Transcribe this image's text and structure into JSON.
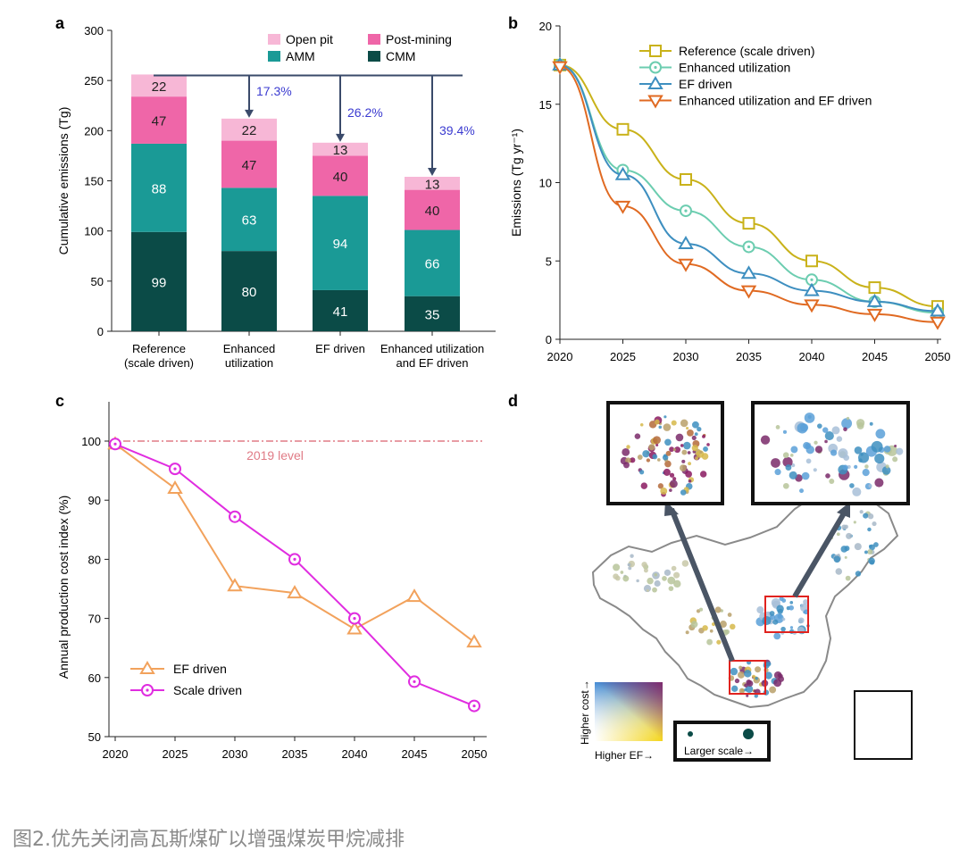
{
  "caption": "图2.优先关闭高瓦斯煤矿以增强煤炭甲烷减排",
  "panels": {
    "a": "a",
    "b": "b",
    "c": "c",
    "d": "d"
  },
  "colors": {
    "open_pit": "#f7b7d6",
    "post_mining": "#ef66a8",
    "amm": "#1a9a96",
    "cmm": "#0b4b47",
    "reference": "#c9b21a",
    "enhanced": "#6ccdb0",
    "ef": "#3e8fc0",
    "enh_ef": "#e06a22",
    "ef_c": "#f2a25c",
    "scale_c": "#e02de0",
    "level2019": "#e07b86",
    "arrow": "#3a4a6a",
    "pct": "#3b3bd0"
  },
  "chart_data": [
    {
      "panel": "a",
      "type": "bar",
      "stacked": true,
      "ylabel": "Cumulative emissions (Tg)",
      "ylim": [
        0,
        300
      ],
      "yticks": [
        0,
        50,
        100,
        150,
        200,
        250,
        300
      ],
      "categories": [
        "Reference\n(scale driven)",
        "Enhanced\nutilization",
        "EF driven",
        "Enhanced utilization\nand EF driven"
      ],
      "series": [
        {
          "name": "CMM",
          "values": [
            99,
            80,
            41,
            35
          ]
        },
        {
          "name": "AMM",
          "values": [
            88,
            63,
            94,
            66
          ]
        },
        {
          "name": "Post-mining",
          "values": [
            47,
            47,
            40,
            40
          ]
        },
        {
          "name": "Open pit",
          "values": [
            22,
            22,
            13,
            13
          ]
        }
      ],
      "legend": [
        "Open pit",
        "Post-mining",
        "AMM",
        "CMM"
      ],
      "reductions": [
        "17.3%",
        "26.2%",
        "39.4%"
      ]
    },
    {
      "panel": "b",
      "type": "line",
      "ylabel": "Emissions (Tg yr⁻¹)",
      "ylim": [
        0,
        20
      ],
      "yticks": [
        0,
        5,
        10,
        15,
        20
      ],
      "x": [
        2020,
        2025,
        2030,
        2035,
        2040,
        2045,
        2050
      ],
      "series": [
        {
          "name": "Reference (scale driven)",
          "values": [
            17.5,
            13.4,
            10.2,
            7.4,
            5.0,
            3.3,
            2.1
          ]
        },
        {
          "name": "Enhanced utilization",
          "values": [
            17.5,
            10.8,
            8.2,
            5.9,
            3.8,
            2.4,
            1.7
          ]
        },
        {
          "name": "EF driven",
          "values": [
            17.5,
            10.5,
            6.1,
            4.2,
            3.1,
            2.4,
            1.8
          ]
        },
        {
          "name": "Enhanced utilization and EF driven",
          "values": [
            17.4,
            8.5,
            4.8,
            3.1,
            2.2,
            1.6,
            1.1
          ]
        }
      ]
    },
    {
      "panel": "c",
      "type": "line",
      "ylabel": "Annual production cost index (%)",
      "ylim": [
        50,
        102.5
      ],
      "yticks": [
        50,
        60,
        70,
        80,
        90,
        100
      ],
      "x": [
        2020,
        2025,
        2030,
        2035,
        2040,
        2045,
        2050
      ],
      "reference_line": {
        "value": 100,
        "label": "2019 level"
      },
      "series": [
        {
          "name": "EF driven",
          "values": [
            99.5,
            92,
            75.5,
            74.3,
            68.2,
            73.7,
            66
          ]
        },
        {
          "name": "Scale driven",
          "values": [
            99.5,
            95.3,
            87.2,
            80,
            70,
            59.3,
            55.2
          ]
        }
      ]
    }
  ],
  "map": {
    "color_legend_y": "Higher cost→",
    "color_legend_x": "Higher EF→",
    "size_legend": "Larger scale→"
  }
}
